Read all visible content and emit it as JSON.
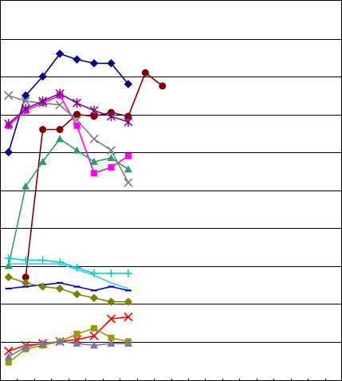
{
  "chart_data": {
    "type": "line",
    "title": "",
    "xlabel": "",
    "ylabel": "",
    "grid": true,
    "legend": "none",
    "x": [
      1,
      2,
      3,
      4,
      5,
      6,
      7,
      8,
      9,
      10,
      11,
      12,
      13,
      14,
      15,
      16,
      17,
      18,
      19,
      20
    ],
    "xlim": [
      0.5,
      20.5
    ],
    "ylim": [
      0,
      10
    ],
    "series": [
      {
        "color": "#000080",
        "marker": "diamond",
        "values": [
          6.0,
          7.5,
          8.0,
          8.6,
          8.45,
          8.35,
          8.35,
          7.8,
          null,
          null,
          null,
          null,
          null,
          null,
          null,
          null,
          null,
          null,
          null,
          null
        ]
      },
      {
        "color": "#800000",
        "marker": "circle",
        "values": [
          null,
          2.7,
          6.6,
          6.6,
          7.0,
          6.95,
          7.05,
          6.95,
          8.1,
          7.75,
          null,
          null,
          null,
          null,
          null,
          null,
          null,
          null,
          null,
          null
        ]
      },
      {
        "color": "#FF00FF",
        "marker": "square",
        "values": [
          6.7,
          7.1,
          7.3,
          7.5,
          6.7,
          5.45,
          5.6,
          5.9,
          null,
          null,
          null,
          null,
          null,
          null,
          null,
          null,
          null,
          null,
          null,
          null
        ]
      },
      {
        "color": "#808080",
        "marker": "x",
        "values": [
          7.5,
          7.35,
          7.3,
          7.25,
          6.85,
          6.35,
          6.05,
          5.2,
          null,
          null,
          null,
          null,
          null,
          null,
          null,
          null,
          null,
          null,
          null,
          null
        ]
      },
      {
        "color": "#800080",
        "marker": "star",
        "values": [
          6.75,
          7.15,
          7.35,
          7.55,
          7.3,
          7.1,
          6.95,
          6.8,
          null,
          null,
          null,
          null,
          null,
          null,
          null,
          null,
          null,
          null,
          null,
          null
        ]
      },
      {
        "color": "#339966",
        "marker": "triangle",
        "values": [
          3.0,
          5.1,
          5.75,
          6.35,
          6.05,
          5.75,
          5.85,
          5.55,
          null,
          null,
          null,
          null,
          null,
          null,
          null,
          null,
          null,
          null,
          null,
          null
        ]
      },
      {
        "color": "#00CCCC",
        "marker": "plus",
        "values": [
          3.2,
          3.15,
          3.15,
          3.1,
          2.95,
          2.8,
          2.8,
          2.8,
          null,
          null,
          null,
          null,
          null,
          null,
          null,
          null,
          null,
          null,
          null,
          null
        ]
      },
      {
        "color": "#33CCFF",
        "marker": "none",
        "values": [
          3.05,
          3.05,
          3.05,
          3.05,
          2.9,
          2.75,
          2.55,
          2.4,
          null,
          null,
          null,
          null,
          null,
          null,
          null,
          null,
          null,
          null,
          null,
          null
        ]
      },
      {
        "color": "#0000CC",
        "marker": "dash",
        "values": [
          2.4,
          2.45,
          2.5,
          2.55,
          2.45,
          2.35,
          2.45,
          2.35,
          null,
          null,
          null,
          null,
          null,
          null,
          null,
          null,
          null,
          null,
          null,
          null
        ]
      },
      {
        "color": "#808000",
        "marker": "diamond",
        "values": [
          2.7,
          2.55,
          2.45,
          2.4,
          2.25,
          2.15,
          2.05,
          2.05,
          null,
          null,
          null,
          null,
          null,
          null,
          null,
          null,
          null,
          null,
          null,
          null
        ]
      },
      {
        "color": "#FF0000",
        "marker": "x",
        "values": [
          0.75,
          0.9,
          0.95,
          1.0,
          1.05,
          1.15,
          1.6,
          1.65,
          null,
          null,
          null,
          null,
          null,
          null,
          null,
          null,
          null,
          null,
          null,
          null
        ]
      },
      {
        "color": "#999900",
        "marker": "square",
        "values": [
          0.45,
          0.8,
          0.9,
          1.0,
          1.2,
          1.35,
          1.1,
          1.0,
          null,
          null,
          null,
          null,
          null,
          null,
          null,
          null,
          null,
          null,
          null,
          null
        ]
      },
      {
        "color": "#7777AA",
        "marker": "triangle",
        "values": [
          0.6,
          0.85,
          0.95,
          1.0,
          0.95,
          0.9,
          0.95,
          0.95,
          null,
          null,
          null,
          null,
          null,
          null,
          null,
          null,
          null,
          null,
          null,
          null
        ]
      }
    ]
  }
}
